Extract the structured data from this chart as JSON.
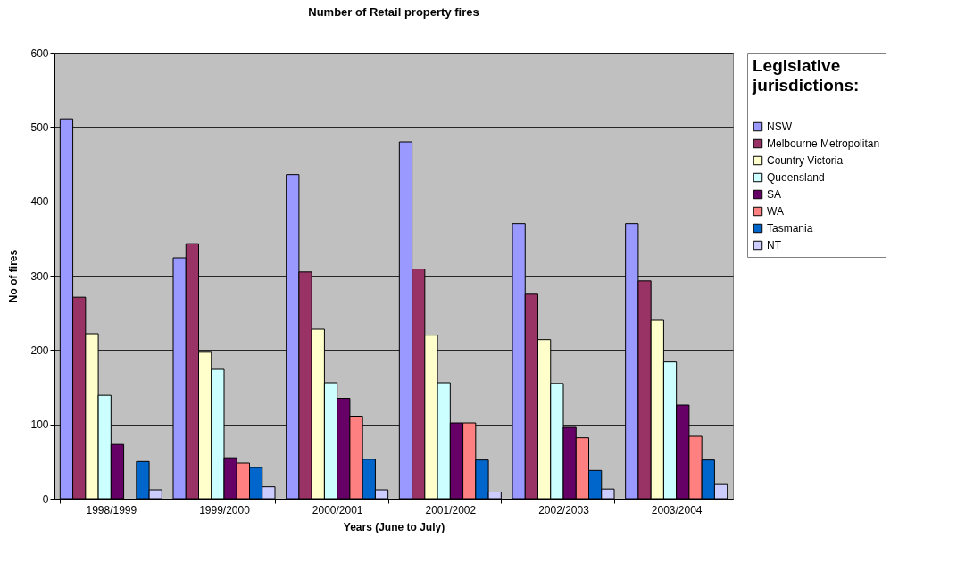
{
  "chart_data": {
    "type": "bar",
    "title": "Number of Retail property fires",
    "xlabel": "Years (June to July)",
    "ylabel": "No of fires",
    "legend_title": "Legislative jurisdictions:",
    "categories": [
      "1998/1999",
      "1999/2000",
      "2000/2001",
      "2001/2002",
      "2002/2003",
      "2003/2004"
    ],
    "series": [
      {
        "name": "NSW",
        "color": "#9999ff",
        "values": [
          511,
          324,
          436,
          480,
          370,
          370
        ]
      },
      {
        "name": "Melbourne Metropolitan",
        "color": "#993366",
        "values": [
          271,
          343,
          305,
          309,
          275,
          293
        ]
      },
      {
        "name": "Country Victoria",
        "color": "#ffffcc",
        "values": [
          222,
          197,
          228,
          220,
          214,
          240
        ]
      },
      {
        "name": "Queensland",
        "color": "#ccffff",
        "values": [
          139,
          174,
          156,
          156,
          155,
          184
        ]
      },
      {
        "name": "SA",
        "color": "#660066",
        "values": [
          73,
          55,
          135,
          102,
          96,
          126
        ]
      },
      {
        "name": "WA",
        "color": "#ff8080",
        "values": [
          null,
          48,
          111,
          102,
          82,
          84
        ]
      },
      {
        "name": "Tasmania",
        "color": "#0066cc",
        "values": [
          50,
          42,
          53,
          52,
          38,
          52
        ]
      },
      {
        "name": "NT",
        "color": "#ccccff",
        "values": [
          12,
          16,
          12,
          9,
          13,
          19
        ]
      }
    ],
    "ylim": [
      0,
      600
    ],
    "yticks": [
      0,
      100,
      200,
      300,
      400,
      500,
      600
    ],
    "grid": "y",
    "legend": "right"
  }
}
